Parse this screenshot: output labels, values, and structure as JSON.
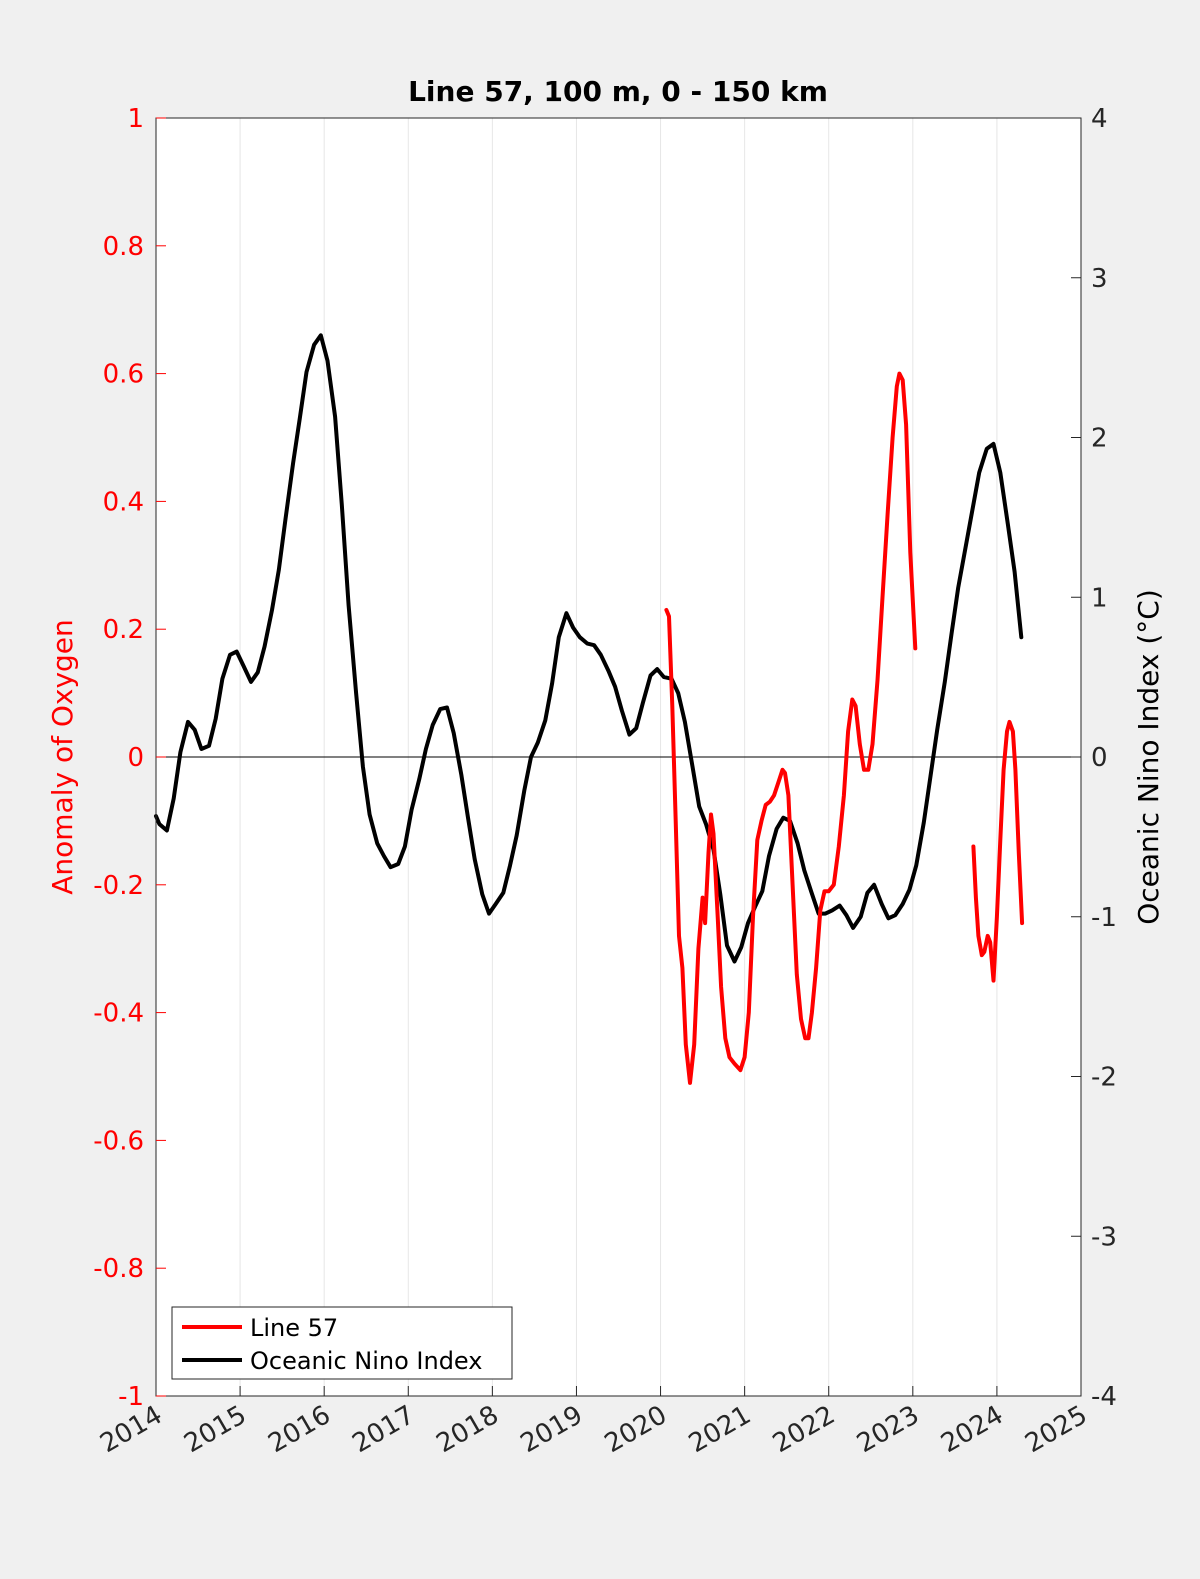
{
  "chart_data": {
    "type": "line",
    "title": "Line 57, 100 m, 0 - 150 km",
    "ylabel_left": "Anomaly of Oxygen",
    "ylabel_right": "Oceanic Nino Index (°C)",
    "xlim": [
      2014,
      2025
    ],
    "ylim_left": [
      -1,
      1
    ],
    "ylim_right": [
      -4,
      4
    ],
    "x_ticks": [
      "2014",
      "2015",
      "2016",
      "2017",
      "2018",
      "2019",
      "2020",
      "2021",
      "2022",
      "2023",
      "2024",
      "2025"
    ],
    "y_ticks_left": [
      "1",
      "0.8",
      "0.6",
      "0.4",
      "0.2",
      "0",
      "-0.2",
      "-0.4",
      "-0.6",
      "-0.8",
      "-1"
    ],
    "y_ticks_right": [
      "4",
      "3",
      "2",
      "1",
      "0",
      "-1",
      "-2",
      "-3",
      "-4"
    ],
    "grid": "vertical",
    "legend_position": "bottom-left",
    "colors": {
      "line57": "#ff0000",
      "oni": "#000000",
      "left_axis": "#ff0000",
      "right_axis": "#000000"
    },
    "series": [
      {
        "name": "Line 57",
        "axis": "left",
        "segments": [
          [
            [
              2020.07,
              0.23
            ],
            [
              2020.1,
              0.22
            ],
            [
              2020.14,
              0.08
            ],
            [
              2020.18,
              -0.1
            ],
            [
              2020.22,
              -0.28
            ],
            [
              2020.26,
              -0.33
            ],
            [
              2020.3,
              -0.45
            ],
            [
              2020.35,
              -0.51
            ],
            [
              2020.4,
              -0.45
            ],
            [
              2020.45,
              -0.3
            ],
            [
              2020.5,
              -0.22
            ],
            [
              2020.53,
              -0.26
            ],
            [
              2020.57,
              -0.15
            ],
            [
              2020.6,
              -0.09
            ],
            [
              2020.63,
              -0.12
            ],
            [
              2020.68,
              -0.25
            ],
            [
              2020.72,
              -0.36
            ],
            [
              2020.77,
              -0.44
            ],
            [
              2020.82,
              -0.47
            ],
            [
              2020.88,
              -0.48
            ],
            [
              2020.95,
              -0.49
            ],
            [
              2021.0,
              -0.47
            ],
            [
              2021.05,
              -0.4
            ],
            [
              2021.1,
              -0.25
            ],
            [
              2021.15,
              -0.13
            ],
            [
              2021.2,
              -0.1
            ],
            [
              2021.25,
              -0.075
            ],
            [
              2021.3,
              -0.07
            ],
            [
              2021.35,
              -0.06
            ],
            [
              2021.4,
              -0.04
            ],
            [
              2021.45,
              -0.02
            ],
            [
              2021.48,
              -0.025
            ],
            [
              2021.52,
              -0.06
            ],
            [
              2021.57,
              -0.2
            ],
            [
              2021.62,
              -0.34
            ],
            [
              2021.67,
              -0.41
            ],
            [
              2021.72,
              -0.44
            ],
            [
              2021.76,
              -0.44
            ],
            [
              2021.8,
              -0.4
            ],
            [
              2021.85,
              -0.33
            ],
            [
              2021.9,
              -0.24
            ],
            [
              2021.95,
              -0.21
            ],
            [
              2022.0,
              -0.21
            ],
            [
              2022.06,
              -0.2
            ],
            [
              2022.12,
              -0.14
            ],
            [
              2022.18,
              -0.06
            ],
            [
              2022.23,
              0.04
            ],
            [
              2022.28,
              0.09
            ],
            [
              2022.32,
              0.08
            ],
            [
              2022.37,
              0.02
            ],
            [
              2022.42,
              -0.02
            ],
            [
              2022.47,
              -0.02
            ],
            [
              2022.52,
              0.02
            ],
            [
              2022.58,
              0.12
            ],
            [
              2022.64,
              0.25
            ],
            [
              2022.7,
              0.38
            ],
            [
              2022.76,
              0.5
            ],
            [
              2022.81,
              0.58
            ],
            [
              2022.84,
              0.6
            ],
            [
              2022.88,
              0.59
            ],
            [
              2022.92,
              0.52
            ],
            [
              2022.97,
              0.32
            ],
            [
              2023.03,
              0.17
            ]
          ],
          [
            [
              2023.72,
              -0.14
            ],
            [
              2023.75,
              -0.22
            ],
            [
              2023.78,
              -0.28
            ],
            [
              2023.82,
              -0.31
            ],
            [
              2023.85,
              -0.305
            ],
            [
              2023.89,
              -0.28
            ],
            [
              2023.92,
              -0.29
            ],
            [
              2023.96,
              -0.35
            ],
            [
              2024.0,
              -0.25
            ],
            [
              2024.04,
              -0.13
            ],
            [
              2024.08,
              -0.02
            ],
            [
              2024.12,
              0.04
            ],
            [
              2024.15,
              0.055
            ],
            [
              2024.19,
              0.04
            ],
            [
              2024.22,
              -0.02
            ],
            [
              2024.26,
              -0.15
            ],
            [
              2024.3,
              -0.26
            ]
          ]
        ]
      },
      {
        "name": "Oceanic Nino Index",
        "axis": "right",
        "segments": [
          [
            [
              2014.0,
              -0.37
            ],
            [
              2014.04,
              -0.42
            ],
            [
              2014.13,
              -0.46
            ],
            [
              2014.21,
              -0.26
            ],
            [
              2014.29,
              0.03
            ],
            [
              2014.38,
              0.22
            ],
            [
              2014.46,
              0.17
            ],
            [
              2014.54,
              0.05
            ],
            [
              2014.63,
              0.07
            ],
            [
              2014.71,
              0.24
            ],
            [
              2014.79,
              0.49
            ],
            [
              2014.88,
              0.64
            ],
            [
              2014.96,
              0.66
            ],
            [
              2015.04,
              0.57
            ],
            [
              2015.13,
              0.47
            ],
            [
              2015.21,
              0.53
            ],
            [
              2015.29,
              0.69
            ],
            [
              2015.38,
              0.92
            ],
            [
              2015.46,
              1.17
            ],
            [
              2015.54,
              1.49
            ],
            [
              2015.63,
              1.84
            ],
            [
              2015.71,
              2.12
            ],
            [
              2015.79,
              2.41
            ],
            [
              2015.88,
              2.58
            ],
            [
              2015.96,
              2.64
            ],
            [
              2016.04,
              2.48
            ],
            [
              2016.13,
              2.13
            ],
            [
              2016.21,
              1.58
            ],
            [
              2016.29,
              0.95
            ],
            [
              2016.38,
              0.4
            ],
            [
              2016.46,
              -0.06
            ],
            [
              2016.54,
              -0.36
            ],
            [
              2016.63,
              -0.54
            ],
            [
              2016.71,
              -0.62
            ],
            [
              2016.79,
              -0.69
            ],
            [
              2016.88,
              -0.67
            ],
            [
              2016.96,
              -0.56
            ],
            [
              2017.04,
              -0.33
            ],
            [
              2017.13,
              -0.14
            ],
            [
              2017.21,
              0.05
            ],
            [
              2017.29,
              0.2
            ],
            [
              2017.38,
              0.3
            ],
            [
              2017.46,
              0.31
            ],
            [
              2017.54,
              0.15
            ],
            [
              2017.63,
              -0.11
            ],
            [
              2017.71,
              -0.38
            ],
            [
              2017.79,
              -0.64
            ],
            [
              2017.88,
              -0.86
            ],
            [
              2017.96,
              -0.98
            ],
            [
              2018.04,
              -0.92
            ],
            [
              2018.13,
              -0.85
            ],
            [
              2018.21,
              -0.68
            ],
            [
              2018.29,
              -0.49
            ],
            [
              2018.38,
              -0.21
            ],
            [
              2018.46,
              0.0
            ],
            [
              2018.54,
              0.09
            ],
            [
              2018.63,
              0.23
            ],
            [
              2018.71,
              0.46
            ],
            [
              2018.79,
              0.75
            ],
            [
              2018.88,
              0.9
            ],
            [
              2018.96,
              0.81
            ],
            [
              2019.04,
              0.75
            ],
            [
              2019.13,
              0.71
            ],
            [
              2019.21,
              0.7
            ],
            [
              2019.29,
              0.64
            ],
            [
              2019.38,
              0.54
            ],
            [
              2019.46,
              0.44
            ],
            [
              2019.54,
              0.29
            ],
            [
              2019.63,
              0.14
            ],
            [
              2019.71,
              0.18
            ],
            [
              2019.79,
              0.34
            ],
            [
              2019.88,
              0.51
            ],
            [
              2019.96,
              0.55
            ],
            [
              2020.04,
              0.5
            ],
            [
              2020.13,
              0.49
            ],
            [
              2020.21,
              0.4
            ],
            [
              2020.29,
              0.22
            ],
            [
              2020.38,
              -0.06
            ],
            [
              2020.46,
              -0.31
            ],
            [
              2020.54,
              -0.42
            ],
            [
              2020.63,
              -0.58
            ],
            [
              2020.71,
              -0.86
            ],
            [
              2020.79,
              -1.18
            ],
            [
              2020.88,
              -1.28
            ],
            [
              2020.96,
              -1.19
            ],
            [
              2021.04,
              -1.04
            ],
            [
              2021.13,
              -0.93
            ],
            [
              2021.21,
              -0.84
            ],
            [
              2021.29,
              -0.62
            ],
            [
              2021.38,
              -0.45
            ],
            [
              2021.46,
              -0.38
            ],
            [
              2021.54,
              -0.4
            ],
            [
              2021.63,
              -0.54
            ],
            [
              2021.71,
              -0.71
            ],
            [
              2021.79,
              -0.84
            ],
            [
              2021.88,
              -0.98
            ],
            [
              2021.96,
              -0.98
            ],
            [
              2022.04,
              -0.96
            ],
            [
              2022.13,
              -0.93
            ],
            [
              2022.21,
              -0.99
            ],
            [
              2022.29,
              -1.07
            ],
            [
              2022.38,
              -1.0
            ],
            [
              2022.46,
              -0.85
            ],
            [
              2022.54,
              -0.8
            ],
            [
              2022.63,
              -0.92
            ],
            [
              2022.71,
              -1.01
            ],
            [
              2022.79,
              -0.99
            ],
            [
              2022.88,
              -0.92
            ],
            [
              2022.96,
              -0.83
            ],
            [
              2023.04,
              -0.68
            ],
            [
              2023.13,
              -0.41
            ],
            [
              2023.21,
              -0.12
            ],
            [
              2023.29,
              0.17
            ],
            [
              2023.38,
              0.47
            ],
            [
              2023.46,
              0.77
            ],
            [
              2023.54,
              1.06
            ],
            [
              2023.63,
              1.32
            ],
            [
              2023.71,
              1.55
            ],
            [
              2023.79,
              1.78
            ],
            [
              2023.88,
              1.93
            ],
            [
              2023.96,
              1.96
            ],
            [
              2024.04,
              1.78
            ],
            [
              2024.13,
              1.46
            ],
            [
              2024.21,
              1.16
            ],
            [
              2024.29,
              0.75
            ]
          ]
        ]
      }
    ]
  }
}
